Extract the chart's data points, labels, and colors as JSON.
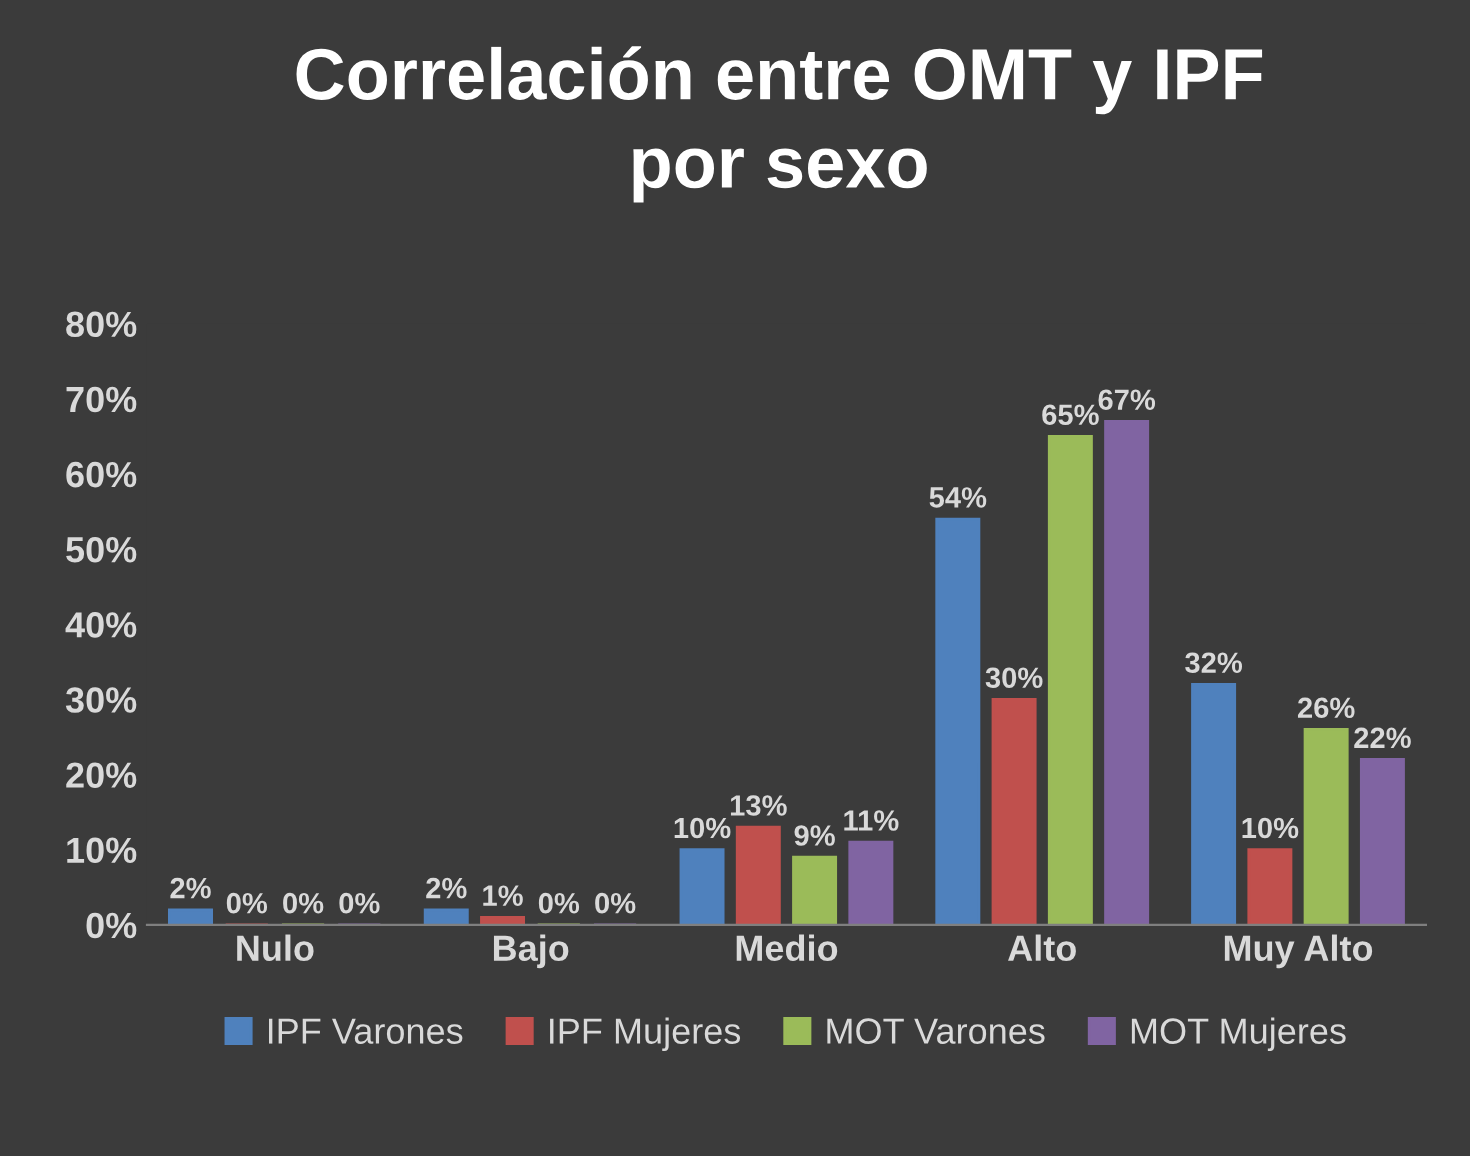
{
  "chart_data": {
    "type": "bar",
    "title": "Correlación entre OMT y IPF\npor sexo",
    "categories": [
      "Nulo",
      "Bajo",
      "Medio",
      "Alto",
      "Muy Alto"
    ],
    "series": [
      {
        "name": "IPF Varones",
        "color": "#4f81bd",
        "values": [
          2,
          2,
          10,
          54,
          32
        ],
        "value_labels": [
          "2%",
          "2%",
          "10%",
          "54%",
          "32%"
        ]
      },
      {
        "name": "IPF Mujeres",
        "color": "#c0504d",
        "values": [
          0,
          1,
          13,
          30,
          10
        ],
        "value_labels": [
          "0%",
          "1%",
          "13%",
          "30%",
          "10%"
        ]
      },
      {
        "name": "MOT Varones",
        "color": "#9bbb59",
        "values": [
          0,
          0,
          9,
          65,
          26
        ],
        "value_labels": [
          "0%",
          "0%",
          "9%",
          "65%",
          "26%"
        ]
      },
      {
        "name": "MOT Mujeres",
        "color": "#8064a2",
        "values": [
          0,
          0,
          11,
          67,
          22
        ],
        "value_labels": [
          "0%",
          "0%",
          "11%",
          "67%",
          "22%"
        ]
      }
    ],
    "ylim": [
      0,
      80
    ],
    "yticks": [
      {
        "value": 0,
        "label": "0%"
      },
      {
        "value": 10,
        "label": "10%"
      },
      {
        "value": 20,
        "label": "20%"
      },
      {
        "value": 30,
        "label": "30%"
      },
      {
        "value": 40,
        "label": "40%"
      },
      {
        "value": 50,
        "label": "50%"
      },
      {
        "value": 60,
        "label": "60%"
      },
      {
        "value": 70,
        "label": "70%"
      },
      {
        "value": 80,
        "label": "80%"
      }
    ],
    "legend": "bottom",
    "grid": false
  }
}
